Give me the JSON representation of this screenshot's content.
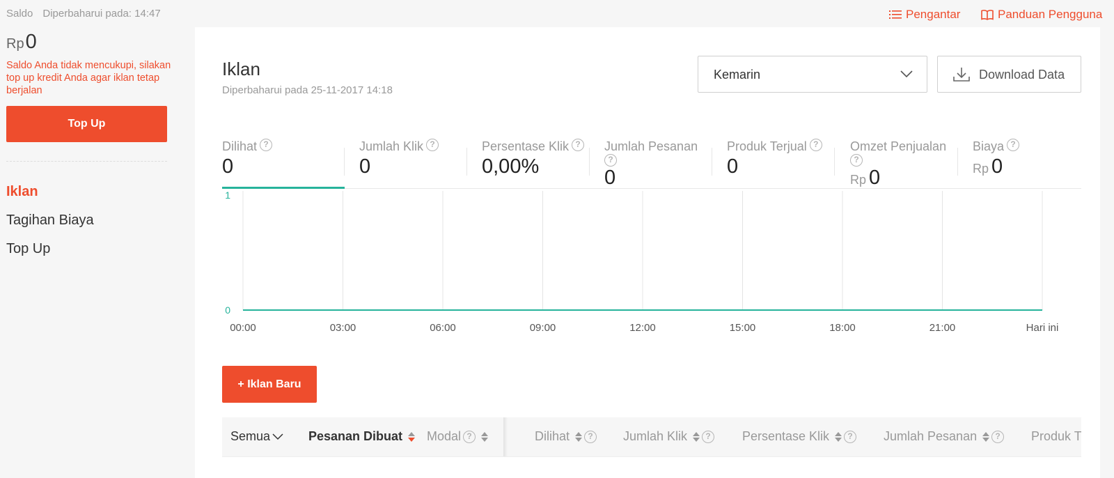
{
  "sidebar": {
    "saldo_label": "Saldo",
    "updated_at": "Diperbaharui pada: 14:47",
    "currency": "Rp",
    "balance": "0",
    "warning": "Saldo Anda tidak mencukupi, silakan top up kredit Anda agar iklan tetap berjalan",
    "topup_label": "Top Up",
    "nav": [
      {
        "label": "Iklan",
        "active": true
      },
      {
        "label": "Tagihan Biaya",
        "active": false
      },
      {
        "label": "Top Up",
        "active": false
      }
    ]
  },
  "toplinks": {
    "intro": "Pengantar",
    "guide": "Panduan Pengguna"
  },
  "header": {
    "title": "Iklan",
    "subtitle": "Diperbaharui pada 25-11-2017 14:18",
    "period": "Kemarin",
    "download_label": "Download Data"
  },
  "metrics": [
    {
      "label": "Dilihat",
      "value": "0",
      "currency": ""
    },
    {
      "label": "Jumlah Klik",
      "value": "0",
      "currency": ""
    },
    {
      "label": "Persentase Klik",
      "value": "0,00%",
      "currency": ""
    },
    {
      "label": "Jumlah Pesanan",
      "value": "0",
      "currency": ""
    },
    {
      "label": "Produk Terjual",
      "value": "0",
      "currency": ""
    },
    {
      "label": "Omzet Penjualan",
      "value": "0",
      "currency": "Rp"
    },
    {
      "label": "Biaya",
      "value": "0",
      "currency": "Rp"
    }
  ],
  "chart_data": {
    "type": "line",
    "categories": [
      "00:00",
      "03:00",
      "06:00",
      "09:00",
      "12:00",
      "15:00",
      "18:00",
      "21:00",
      "Hari ini"
    ],
    "series": [
      {
        "values": [
          0,
          0,
          0,
          0,
          0,
          0,
          0,
          0,
          0
        ],
        "color": "#26b39b"
      }
    ],
    "ylim": [
      0,
      1
    ],
    "yticks": [
      "0",
      "1"
    ],
    "grid": "vertical",
    "xlabel": "",
    "ylabel": ""
  },
  "new_ad_label": "+ Iklan Baru",
  "table": {
    "filter": "Semua",
    "columns": [
      "Pesanan Dibuat",
      "Modal",
      "Dilihat",
      "Jumlah Klik",
      "Persentase Klik",
      "Jumlah Pesanan",
      "Produk T"
    ]
  },
  "colors": {
    "accent": "#ee4d2d",
    "chart_line": "#26b39b"
  }
}
